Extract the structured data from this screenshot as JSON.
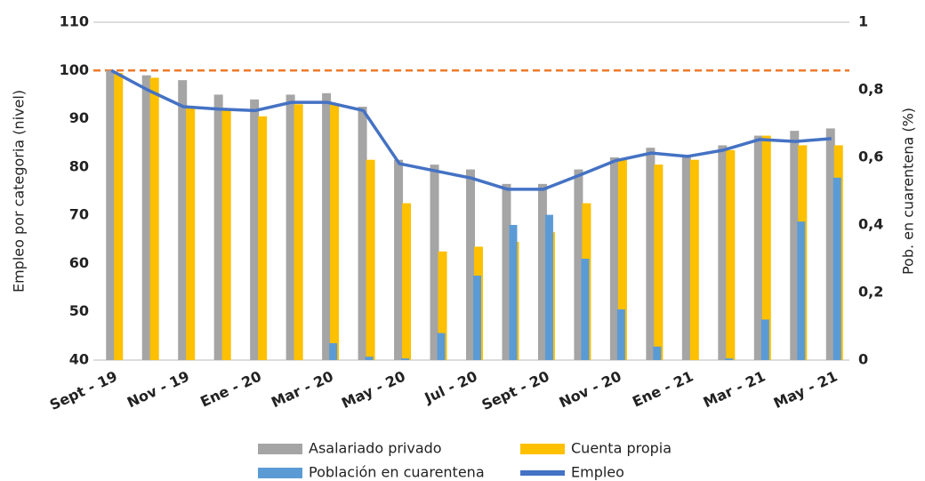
{
  "chart_data": {
    "type": "bar-line",
    "y_label": "Empleo por categoria (nivel)",
    "y2_label": "Pob. en cuarentena (%)",
    "categories": [
      "Sept - 19",
      null,
      "Nov - 19",
      null,
      "Ene - 20",
      null,
      "Mar - 20",
      null,
      "May - 20",
      null,
      "Jul - 20",
      null,
      "Sept - 20",
      null,
      "Nov - 20",
      null,
      "Ene - 21",
      null,
      "Mar - 21",
      null,
      "May - 21"
    ],
    "series": [
      {
        "name": "Asalariado privado",
        "kind": "bar",
        "color": "#a5a5a5",
        "values": [
          100,
          99,
          98,
          95,
          94,
          95,
          95.3,
          92.5,
          81.5,
          80.5,
          79.5,
          76.5,
          76.5,
          79.5,
          82,
          84,
          82.5,
          84.5,
          86.5,
          87.5,
          88
        ]
      },
      {
        "name": "Cuenta propia",
        "kind": "bar",
        "color": "#ffc000",
        "values": [
          99.5,
          98.5,
          92.5,
          92,
          90.5,
          93,
          93,
          81.5,
          72.5,
          62.5,
          63.5,
          64.5,
          66.5,
          72.5,
          81.5,
          80.5,
          81.5,
          83.5,
          86.5,
          84.5,
          84.5
        ]
      },
      {
        "name": "Población en cuarentena",
        "kind": "bar",
        "axis": "y2",
        "color": "#5b9bd5",
        "values": [
          0,
          0,
          0,
          0,
          0,
          0,
          0.05,
          0.01,
          0.005,
          0.08,
          0.25,
          0.4,
          0.43,
          0.3,
          0.15,
          0.04,
          0,
          0.005,
          0.12,
          0.41,
          0.54
        ]
      },
      {
        "name": "Empleo",
        "kind": "line",
        "color": "#4472c4",
        "values": [
          100,
          96,
          92.5,
          92,
          91.7,
          93.4,
          93.4,
          91.7,
          80.7,
          79.2,
          77.7,
          75.4,
          75.4,
          78.3,
          81.3,
          82.9,
          82.2,
          83.5,
          85.7,
          85.3,
          85.9
        ]
      }
    ],
    "reference_line": {
      "value": 100,
      "color": "#f07a2a"
    },
    "ylim": [
      40,
      110
    ],
    "yticks": [
      40,
      50,
      60,
      70,
      80,
      90,
      100,
      110
    ],
    "y2lim": [
      0,
      1
    ],
    "y2ticks": [
      0,
      {
        "value": 0.2,
        "label": "0,2"
      },
      {
        "value": 0.4,
        "label": "0,4"
      },
      {
        "value": 0.6,
        "label": "0,6"
      },
      {
        "value": 0.8,
        "label": "0,8"
      },
      1
    ],
    "grid": false
  }
}
